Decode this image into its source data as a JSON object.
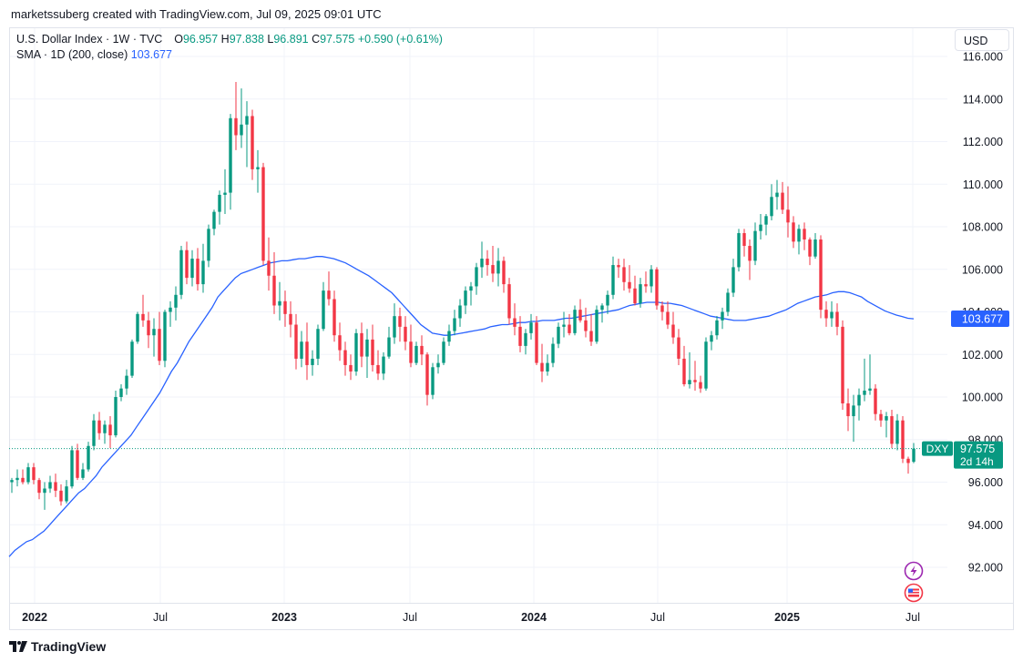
{
  "header": {
    "attribution": "marketssuberg created with TradingView.com, Jul 09, 2025 09:01 UTC"
  },
  "legend": {
    "symbol": "U.S. Dollar Index · 1W · TVC",
    "o_label": "O",
    "o": "96.957",
    "h_label": "H",
    "h": "97.838",
    "l_label": "L",
    "l": "96.891",
    "c_label": "C",
    "c": "97.575",
    "change": "+0.590 (+0.61%)",
    "sma_label": "SMA · 1D (200, close)",
    "sma_value": "103.677"
  },
  "currency_button": "USD",
  "footer": {
    "brand": "TradingView"
  },
  "colors": {
    "up": "#089981",
    "down": "#f23645",
    "sma": "#2962ff",
    "grid": "#f0f3fa",
    "axis": "#131722"
  },
  "chart_data": {
    "type": "candlestick",
    "interval": "1W",
    "symbol": "DXY",
    "ylim": [
      90.5,
      116.0
    ],
    "x_ticks": [
      "2022",
      "Jul",
      "2023",
      "Jul",
      "2024",
      "Jul",
      "2025",
      "Jul"
    ],
    "y_ticks": [
      "92.000",
      "94.000",
      "96.000",
      "98.000",
      "100.000",
      "102.000",
      "104.000",
      "106.000",
      "108.000",
      "110.000",
      "112.000",
      "114.000",
      "116.000"
    ],
    "price_label": {
      "symbol": "DXY",
      "price": "97.575",
      "countdown": "2d 14h"
    },
    "sma_label": "103.677",
    "sma": [
      92.5,
      92.8,
      93.0,
      93.2,
      93.3,
      93.5,
      93.7,
      94.0,
      94.3,
      94.6,
      94.9,
      95.2,
      95.5,
      95.7,
      96.0,
      96.3,
      96.7,
      97.0,
      97.3,
      97.6,
      97.9,
      98.2,
      98.6,
      99.0,
      99.4,
      99.8,
      100.2,
      100.7,
      101.2,
      101.6,
      102.1,
      102.6,
      103.0,
      103.4,
      103.8,
      104.2,
      104.7,
      105.0,
      105.3,
      105.6,
      105.8,
      105.9,
      106.0,
      106.1,
      106.2,
      106.3,
      106.35,
      106.4,
      106.4,
      106.45,
      106.5,
      106.5,
      106.55,
      106.6,
      106.6,
      106.55,
      106.5,
      106.4,
      106.3,
      106.15,
      106.0,
      105.85,
      105.7,
      105.5,
      105.3,
      105.1,
      104.9,
      104.6,
      104.3,
      104.0,
      103.7,
      103.4,
      103.2,
      103.0,
      102.95,
      102.9,
      102.9,
      102.95,
      103.0,
      103.05,
      103.1,
      103.15,
      103.2,
      103.3,
      103.35,
      103.4,
      103.4,
      103.45,
      103.5,
      103.5,
      103.55,
      103.55,
      103.6,
      103.6,
      103.6,
      103.65,
      103.7,
      103.7,
      103.75,
      103.8,
      103.85,
      103.9,
      103.95,
      104.0,
      104.05,
      104.1,
      104.2,
      104.3,
      104.35,
      104.4,
      104.45,
      104.45,
      104.45,
      104.4,
      104.4,
      104.35,
      104.3,
      104.2,
      104.1,
      104.0,
      103.9,
      103.8,
      103.75,
      103.7,
      103.65,
      103.6,
      103.6,
      103.6,
      103.65,
      103.7,
      103.75,
      103.8,
      103.9,
      104.0,
      104.1,
      104.25,
      104.4,
      104.5,
      104.6,
      104.7,
      104.75,
      104.8,
      104.9,
      104.95,
      104.95,
      104.9,
      104.8,
      104.7,
      104.5,
      104.35,
      104.2,
      104.05,
      103.95,
      103.85,
      103.78,
      103.7,
      103.677
    ],
    "candles": [
      [
        96.0,
        96.2,
        95.5,
        96.1
      ],
      [
        96.1,
        96.6,
        95.8,
        96.2
      ],
      [
        96.2,
        96.6,
        95.9,
        96.0
      ],
      [
        96.0,
        96.9,
        95.9,
        96.7
      ],
      [
        96.7,
        96.9,
        95.9,
        96.1
      ],
      [
        96.1,
        96.2,
        95.2,
        95.5
      ],
      [
        95.5,
        96.0,
        94.7,
        95.7
      ],
      [
        95.7,
        96.3,
        95.5,
        96.0
      ],
      [
        96.0,
        96.4,
        95.3,
        95.6
      ],
      [
        95.6,
        95.9,
        94.9,
        95.1
      ],
      [
        95.1,
        96.1,
        95.0,
        95.8
      ],
      [
        95.8,
        97.7,
        95.7,
        97.5
      ],
      [
        97.5,
        97.8,
        96.1,
        96.2
      ],
      [
        96.2,
        96.9,
        96.1,
        96.6
      ],
      [
        96.6,
        97.9,
        96.5,
        97.7
      ],
      [
        97.7,
        99.2,
        97.5,
        98.9
      ],
      [
        98.9,
        99.3,
        98.0,
        98.3
      ],
      [
        98.3,
        98.9,
        97.8,
        98.7
      ],
      [
        98.7,
        99.1,
        97.6,
        98.2
      ],
      [
        98.2,
        100.3,
        98.1,
        100.0
      ],
      [
        100.0,
        100.6,
        99.8,
        100.4
      ],
      [
        100.4,
        101.3,
        100.1,
        101.0
      ],
      [
        101.0,
        102.7,
        100.9,
        102.6
      ],
      [
        102.6,
        104.0,
        102.5,
        103.9
      ],
      [
        103.9,
        104.8,
        103.3,
        103.6
      ],
      [
        103.6,
        104.0,
        102.3,
        102.9
      ],
      [
        102.9,
        103.7,
        101.9,
        103.2
      ],
      [
        103.2,
        104.0,
        101.5,
        101.7
      ],
      [
        101.7,
        104.1,
        101.4,
        104.0
      ],
      [
        104.0,
        104.5,
        103.3,
        104.2
      ],
      [
        104.2,
        105.2,
        103.6,
        104.8
      ],
      [
        104.8,
        107.1,
        104.6,
        106.9
      ],
      [
        106.9,
        107.3,
        105.3,
        105.6
      ],
      [
        105.6,
        106.9,
        105.2,
        106.5
      ],
      [
        106.5,
        107.0,
        105.0,
        105.3
      ],
      [
        105.3,
        107.2,
        104.9,
        106.4
      ],
      [
        106.4,
        108.1,
        106.1,
        107.9
      ],
      [
        107.9,
        108.8,
        107.6,
        108.7
      ],
      [
        108.7,
        109.7,
        108.1,
        109.5
      ],
      [
        109.5,
        110.7,
        108.6,
        109.6
      ],
      [
        109.6,
        113.3,
        108.8,
        113.1
      ],
      [
        113.1,
        114.8,
        111.6,
        112.3
      ],
      [
        112.3,
        114.5,
        111.7,
        112.8
      ],
      [
        112.8,
        113.9,
        110.8,
        113.2
      ],
      [
        113.2,
        113.5,
        110.2,
        110.7
      ],
      [
        110.7,
        111.6,
        109.6,
        110.8
      ],
      [
        110.8,
        111.0,
        106.2,
        106.4
      ],
      [
        106.4,
        107.5,
        105.0,
        105.7
      ],
      [
        105.7,
        106.8,
        103.9,
        104.3
      ],
      [
        104.3,
        105.4,
        103.6,
        104.5
      ],
      [
        104.5,
        105.0,
        103.3,
        103.9
      ],
      [
        103.9,
        104.5,
        102.8,
        103.4
      ],
      [
        103.4,
        103.9,
        101.3,
        101.8
      ],
      [
        101.8,
        103.1,
        101.4,
        102.6
      ],
      [
        102.6,
        103.5,
        100.8,
        101.5
      ],
      [
        101.5,
        102.2,
        101.0,
        101.8
      ],
      [
        101.8,
        103.4,
        101.5,
        103.2
      ],
      [
        103.2,
        105.4,
        103.1,
        105.0
      ],
      [
        105.0,
        105.9,
        104.3,
        104.6
      ],
      [
        104.6,
        105.0,
        102.6,
        102.9
      ],
      [
        102.9,
        103.5,
        101.7,
        102.2
      ],
      [
        102.2,
        102.6,
        101.0,
        101.5
      ],
      [
        101.5,
        102.0,
        100.8,
        101.2
      ],
      [
        101.2,
        103.2,
        101.0,
        103.0
      ],
      [
        103.0,
        103.5,
        101.4,
        101.9
      ],
      [
        101.9,
        103.2,
        100.9,
        102.7
      ],
      [
        102.7,
        103.4,
        101.2,
        101.5
      ],
      [
        101.5,
        102.2,
        100.8,
        101.1
      ],
      [
        101.1,
        102.1,
        100.8,
        101.9
      ],
      [
        101.9,
        103.3,
        101.8,
        102.8
      ],
      [
        102.8,
        104.4,
        102.5,
        103.8
      ],
      [
        103.8,
        104.2,
        102.6,
        103.3
      ],
      [
        103.3,
        103.8,
        102.2,
        102.6
      ],
      [
        102.6,
        103.4,
        101.4,
        101.6
      ],
      [
        101.6,
        102.6,
        101.5,
        102.4
      ],
      [
        102.4,
        102.9,
        101.5,
        102.0
      ],
      [
        102.0,
        102.1,
        99.6,
        100.1
      ],
      [
        100.1,
        101.6,
        99.9,
        101.4
      ],
      [
        101.4,
        102.0,
        101.1,
        101.6
      ],
      [
        101.6,
        102.8,
        101.5,
        102.6
      ],
      [
        102.6,
        103.4,
        102.4,
        103.1
      ],
      [
        103.1,
        104.1,
        102.9,
        103.7
      ],
      [
        103.7,
        104.6,
        103.3,
        104.3
      ],
      [
        104.3,
        105.2,
        103.9,
        105.0
      ],
      [
        105.0,
        105.4,
        104.3,
        105.2
      ],
      [
        105.2,
        106.3,
        104.8,
        106.1
      ],
      [
        106.1,
        107.3,
        105.6,
        106.5
      ],
      [
        106.5,
        106.9,
        105.7,
        106.2
      ],
      [
        106.2,
        107.1,
        105.4,
        105.8
      ],
      [
        105.8,
        107.0,
        105.2,
        106.4
      ],
      [
        106.4,
        106.6,
        104.9,
        105.3
      ],
      [
        105.3,
        105.6,
        103.4,
        103.7
      ],
      [
        103.7,
        104.4,
        102.9,
        103.3
      ],
      [
        103.3,
        103.8,
        102.1,
        102.4
      ],
      [
        102.4,
        103.2,
        102.0,
        103.0
      ],
      [
        103.0,
        103.9,
        102.7,
        103.5
      ],
      [
        103.5,
        103.8,
        101.5,
        101.6
      ],
      [
        101.6,
        102.5,
        100.7,
        101.2
      ],
      [
        101.2,
        102.0,
        101.0,
        101.6
      ],
      [
        101.6,
        102.8,
        101.4,
        102.5
      ],
      [
        102.5,
        103.5,
        102.3,
        103.3
      ],
      [
        103.3,
        104.0,
        102.8,
        103.4
      ],
      [
        103.4,
        103.9,
        102.9,
        103.0
      ],
      [
        103.0,
        104.3,
        102.9,
        104.1
      ],
      [
        104.1,
        104.6,
        103.5,
        103.6
      ],
      [
        103.6,
        104.2,
        102.8,
        103.1
      ],
      [
        103.1,
        103.9,
        102.4,
        102.6
      ],
      [
        102.6,
        104.3,
        102.5,
        104.1
      ],
      [
        104.1,
        104.4,
        103.5,
        104.3
      ],
      [
        104.3,
        105.0,
        103.9,
        104.8
      ],
      [
        104.8,
        106.6,
        104.6,
        106.2
      ],
      [
        106.2,
        106.5,
        105.6,
        106.1
      ],
      [
        106.1,
        106.5,
        105.0,
        105.4
      ],
      [
        105.4,
        106.2,
        104.9,
        105.1
      ],
      [
        105.1,
        105.7,
        104.3,
        104.4
      ],
      [
        104.4,
        105.6,
        104.2,
        105.3
      ],
      [
        105.3,
        105.9,
        104.9,
        105.2
      ],
      [
        105.2,
        106.2,
        104.9,
        106.0
      ],
      [
        106.0,
        106.1,
        104.1,
        104.3
      ],
      [
        104.3,
        104.5,
        103.6,
        104.0
      ],
      [
        104.0,
        104.5,
        103.2,
        103.4
      ],
      [
        103.4,
        104.0,
        102.5,
        102.8
      ],
      [
        102.8,
        103.2,
        101.5,
        101.8
      ],
      [
        101.8,
        102.4,
        100.5,
        100.6
      ],
      [
        100.6,
        102.1,
        100.4,
        100.8
      ],
      [
        100.8,
        101.7,
        100.3,
        100.7
      ],
      [
        100.7,
        101.0,
        100.2,
        100.4
      ],
      [
        100.4,
        102.8,
        100.3,
        102.6
      ],
      [
        102.6,
        103.1,
        102.2,
        102.9
      ],
      [
        102.9,
        103.8,
        102.7,
        103.6
      ],
      [
        103.6,
        104.2,
        103.2,
        104.0
      ],
      [
        104.0,
        105.1,
        103.8,
        104.9
      ],
      [
        104.9,
        106.5,
        104.7,
        106.1
      ],
      [
        106.1,
        107.9,
        105.9,
        107.7
      ],
      [
        107.7,
        107.9,
        106.6,
        107.1
      ],
      [
        107.1,
        107.4,
        105.5,
        106.4
      ],
      [
        106.4,
        108.2,
        106.2,
        107.8
      ],
      [
        107.8,
        108.6,
        107.4,
        108.1
      ],
      [
        108.1,
        108.6,
        107.6,
        108.5
      ],
      [
        108.5,
        110.0,
        108.3,
        109.4
      ],
      [
        109.4,
        110.2,
        108.8,
        109.6
      ],
      [
        109.6,
        110.1,
        108.6,
        108.8
      ],
      [
        108.8,
        109.9,
        107.5,
        108.2
      ],
      [
        108.2,
        108.5,
        107.0,
        107.3
      ],
      [
        107.3,
        108.1,
        106.7,
        107.9
      ],
      [
        107.9,
        108.2,
        106.9,
        107.4
      ],
      [
        107.4,
        107.5,
        106.2,
        106.6
      ],
      [
        106.6,
        107.7,
        106.5,
        107.4
      ],
      [
        107.4,
        107.6,
        103.7,
        104.1
      ],
      [
        104.1,
        104.5,
        103.3,
        103.7
      ],
      [
        103.7,
        104.5,
        103.3,
        104.0
      ],
      [
        104.0,
        104.4,
        102.9,
        103.3
      ],
      [
        103.3,
        103.6,
        99.4,
        99.7
      ],
      [
        99.7,
        100.4,
        98.4,
        99.1
      ],
      [
        99.1,
        100.1,
        97.9,
        99.6
      ],
      [
        99.6,
        100.4,
        98.9,
        100.1
      ],
      [
        100.1,
        101.8,
        99.8,
        100.3
      ],
      [
        100.3,
        102.0,
        100.1,
        100.4
      ],
      [
        100.4,
        100.6,
        98.9,
        99.2
      ],
      [
        99.2,
        99.4,
        98.6,
        98.9
      ],
      [
        98.9,
        99.3,
        98.1,
        99.1
      ],
      [
        99.1,
        99.4,
        97.6,
        97.8
      ],
      [
        97.8,
        99.2,
        97.5,
        98.9
      ],
      [
        98.9,
        99.1,
        96.9,
        97.1
      ],
      [
        97.1,
        97.2,
        96.4,
        96.9
      ],
      [
        96.957,
        97.838,
        96.891,
        97.575
      ]
    ]
  }
}
